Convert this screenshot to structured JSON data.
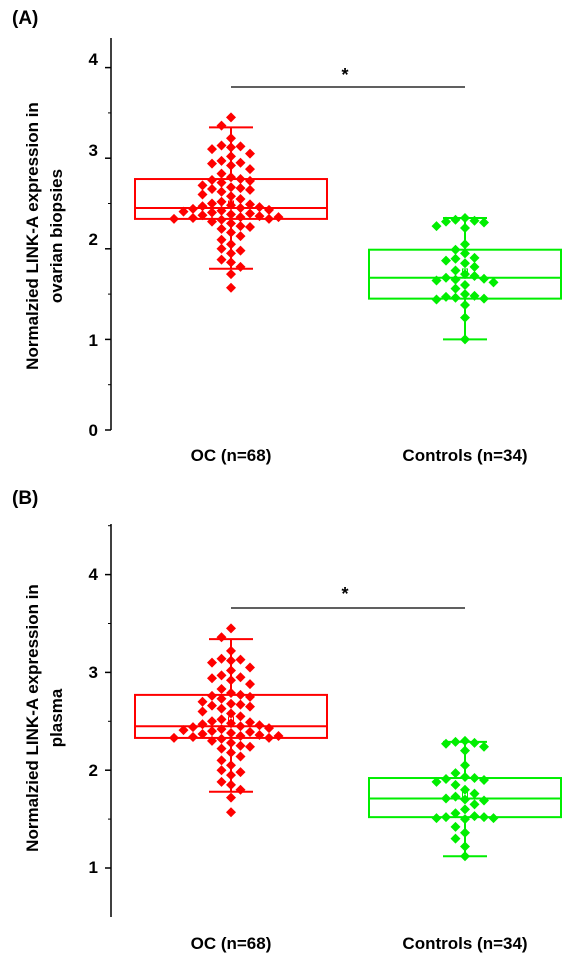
{
  "chart_data": [
    {
      "type": "box",
      "panel_label": "(A)",
      "ylabel_lines": [
        "Normalzied LINK-A expression in",
        "ovarian biopsies"
      ],
      "ylim": [
        0,
        4.3
      ],
      "yticks": [
        "0",
        "1",
        "2",
        "3",
        "4"
      ],
      "categories": [
        "OC (n=68)",
        "Controls (n=34)"
      ],
      "significance": "*",
      "series": [
        {
          "color": "#ff0000",
          "box": {
            "q1": 2.33,
            "median": 2.45,
            "q3": 2.77,
            "whisker_low": 1.78,
            "whisker_high": 3.34,
            "mean": 2.5
          },
          "points": [
            3.45,
            3.36,
            3.22,
            3.14,
            3.13,
            3.12,
            3.1,
            3.05,
            3.02,
            2.97,
            2.95,
            2.94,
            2.92,
            2.88,
            2.83,
            2.79,
            2.77,
            2.76,
            2.75,
            2.73,
            2.7,
            2.68,
            2.67,
            2.66,
            2.65,
            2.63,
            2.6,
            2.58,
            2.55,
            2.52,
            2.5,
            2.49,
            2.48,
            2.47,
            2.46,
            2.45,
            2.44,
            2.43,
            2.42,
            2.41,
            2.4,
            2.39,
            2.38,
            2.37,
            2.36,
            2.35,
            2.35,
            2.34,
            2.33,
            2.33,
            2.32,
            2.3,
            2.28,
            2.25,
            2.24,
            2.22,
            2.18,
            2.14,
            2.1,
            2.05,
            2.0,
            1.98,
            1.95,
            1.88,
            1.85,
            1.8,
            1.72,
            1.57
          ]
        },
        {
          "color": "#00ee00",
          "box": {
            "q1": 1.45,
            "median": 1.68,
            "q3": 1.99,
            "whisker_low": 1.0,
            "whisker_high": 2.34,
            "mean": 1.75
          },
          "points": [
            2.34,
            2.32,
            2.31,
            2.3,
            2.29,
            2.25,
            2.23,
            2.05,
            1.99,
            1.95,
            1.9,
            1.89,
            1.87,
            1.84,
            1.8,
            1.76,
            1.72,
            1.7,
            1.68,
            1.67,
            1.66,
            1.65,
            1.63,
            1.6,
            1.56,
            1.5,
            1.48,
            1.47,
            1.46,
            1.45,
            1.44,
            1.38,
            1.24,
            1.0
          ]
        }
      ]
    },
    {
      "type": "box",
      "panel_label": "(B)",
      "ylabel_lines": [
        "Normalzied LINK-A expression in",
        "plasma"
      ],
      "ylim": [
        0.5,
        4.5
      ],
      "yticks": [
        "1",
        "2",
        "3",
        "4"
      ],
      "categories": [
        "OC (n=68)",
        "Controls (n=34)"
      ],
      "significance": "*",
      "series": [
        {
          "color": "#ff0000",
          "box": {
            "q1": 2.33,
            "median": 2.45,
            "q3": 2.77,
            "whisker_low": 1.78,
            "whisker_high": 3.34,
            "mean": 2.52
          },
          "points": [
            3.45,
            3.36,
            3.22,
            3.14,
            3.13,
            3.12,
            3.1,
            3.05,
            3.02,
            2.97,
            2.95,
            2.94,
            2.92,
            2.88,
            2.83,
            2.79,
            2.77,
            2.76,
            2.75,
            2.73,
            2.7,
            2.68,
            2.67,
            2.66,
            2.65,
            2.63,
            2.6,
            2.58,
            2.55,
            2.52,
            2.5,
            2.49,
            2.48,
            2.47,
            2.46,
            2.45,
            2.44,
            2.43,
            2.42,
            2.41,
            2.4,
            2.39,
            2.38,
            2.37,
            2.36,
            2.35,
            2.35,
            2.34,
            2.33,
            2.33,
            2.32,
            2.3,
            2.28,
            2.25,
            2.24,
            2.22,
            2.18,
            2.14,
            2.1,
            2.05,
            2.0,
            1.98,
            1.95,
            1.88,
            1.85,
            1.8,
            1.72,
            1.57
          ]
        },
        {
          "color": "#00ee00",
          "box": {
            "q1": 1.52,
            "median": 1.71,
            "q3": 1.92,
            "whisker_low": 1.12,
            "whisker_high": 2.29,
            "mean": 1.75
          },
          "points": [
            2.3,
            2.29,
            2.28,
            2.27,
            2.24,
            2.2,
            2.05,
            1.97,
            1.93,
            1.92,
            1.91,
            1.9,
            1.88,
            1.85,
            1.8,
            1.76,
            1.73,
            1.71,
            1.7,
            1.69,
            1.65,
            1.6,
            1.56,
            1.53,
            1.52,
            1.52,
            1.51,
            1.51,
            1.5,
            1.42,
            1.36,
            1.3,
            1.22,
            1.12
          ]
        }
      ]
    }
  ]
}
